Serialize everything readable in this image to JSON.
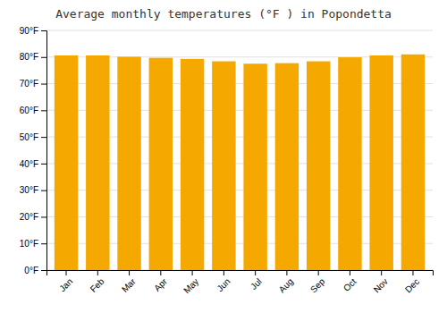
{
  "chart_data": {
    "type": "bar",
    "title": "Average monthly temperatures (°F ) in Popondetta",
    "categories": [
      "Jan",
      "Feb",
      "Mar",
      "Apr",
      "May",
      "Jun",
      "Jul",
      "Aug",
      "Sep",
      "Oct",
      "Nov",
      "Dec"
    ],
    "values": [
      80.6,
      80.6,
      80.1,
      79.7,
      79.3,
      78.4,
      77.5,
      77.7,
      78.4,
      79.9,
      80.6,
      81.0
    ],
    "color": "#F5A800",
    "ylim": [
      0,
      90
    ],
    "yticks": [
      {
        "value": 0,
        "label": "0°F"
      },
      {
        "value": 10,
        "label": "10°F"
      },
      {
        "value": 20,
        "label": "20°F"
      },
      {
        "value": 30,
        "label": "30°F"
      },
      {
        "value": 40,
        "label": "40°F"
      },
      {
        "value": 50,
        "label": "50°F"
      },
      {
        "value": 60,
        "label": "60°F"
      },
      {
        "value": 70,
        "label": "70°F"
      },
      {
        "value": 80,
        "label": "80°F"
      },
      {
        "value": 90,
        "label": "90°F"
      }
    ],
    "grid": true
  }
}
